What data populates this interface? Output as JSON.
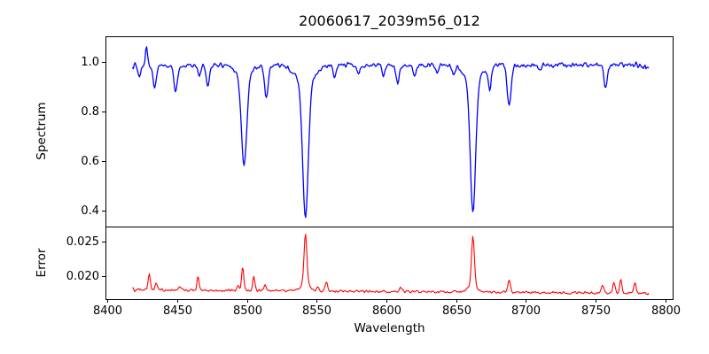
{
  "chart_data": {
    "type": "line",
    "title": "20060617_2039m56_012",
    "xlabel": "Wavelength",
    "xlim": [
      8398.7,
      8805.1
    ],
    "x_ticks": [
      {
        "value": 8400,
        "label": "8400"
      },
      {
        "value": 8450,
        "label": "8450"
      },
      {
        "value": 8500,
        "label": "8500"
      },
      {
        "value": 8550,
        "label": "8550"
      },
      {
        "value": 8600,
        "label": "8600"
      },
      {
        "value": 8650,
        "label": "8650"
      },
      {
        "value": 8700,
        "label": "8700"
      },
      {
        "value": 8750,
        "label": "8750"
      },
      {
        "value": 8800,
        "label": "8800"
      }
    ],
    "data_range": [
      8418,
      8788
    ],
    "sample_step": 0.64,
    "background": "#ffffff",
    "spine_color": "#000000",
    "text_color": "#000000",
    "grid": false,
    "legend": "none",
    "panels": [
      {
        "kind": "spectrum",
        "ylabel": "Spectrum",
        "ylim": [
          0.3357,
          1.1036
        ],
        "y_ticks": [
          {
            "value": 0.4,
            "label": "0.4"
          },
          {
            "value": 0.6,
            "label": "0.6"
          },
          {
            "value": 0.8,
            "label": "0.8"
          },
          {
            "value": 1.0,
            "label": "1.0"
          }
        ],
        "color": "#0000ff",
        "line_width": 1.3,
        "continuum": 0.988,
        "noise_amp": 0.0115,
        "noise_seed": 1337,
        "absorption_lines": [
          [
            8423,
            0.05,
            1.0
          ],
          [
            8434,
            0.095,
            1.1
          ],
          [
            8449,
            0.115,
            1.2
          ],
          [
            8466,
            0.05,
            1.0
          ],
          [
            8472,
            0.095,
            1.1
          ],
          [
            8498,
            0.355,
            1.9
          ],
          [
            8498,
            0.05,
            5.0
          ],
          [
            8514,
            0.13,
            1.3
          ],
          [
            8542,
            0.545,
            2.0
          ],
          [
            8542,
            0.07,
            7.0
          ],
          [
            8563,
            0.05,
            1.1
          ],
          [
            8580,
            0.04,
            1.1
          ],
          [
            8598,
            0.045,
            1.0
          ],
          [
            8608,
            0.075,
            1.2
          ],
          [
            8620,
            0.05,
            1.1
          ],
          [
            8636,
            0.03,
            1.0
          ],
          [
            8648,
            0.03,
            1.0
          ],
          [
            8662,
            0.53,
            1.9
          ],
          [
            8662,
            0.065,
            6.0
          ],
          [
            8674,
            0.095,
            1.1
          ],
          [
            8688,
            0.17,
            1.4
          ],
          [
            8710,
            0.03,
            1.0
          ],
          [
            8757,
            0.095,
            1.2
          ]
        ],
        "emission_spikes": [
          [
            8428,
            0.072,
            0.7
          ]
        ]
      },
      {
        "kind": "error",
        "ylabel": "Error",
        "ylim": [
          0.01671,
          0.02709
        ],
        "y_ticks": [
          {
            "value": 0.02,
            "label": "0.020"
          },
          {
            "value": 0.025,
            "label": "0.025"
          }
        ],
        "color": "#ff0000",
        "line_width": 1.1,
        "baseline": 0.0178,
        "baseline_slope": -1.35e-06,
        "baseline_ref": 8600,
        "noise_amp": 0.00022,
        "noise_seed": 7331,
        "peaks": [
          [
            8430,
            0.0024,
            0.7
          ],
          [
            8435,
            0.0011,
            0.7
          ],
          [
            8452,
            0.0007,
            0.8
          ],
          [
            8465,
            0.0019,
            0.7
          ],
          [
            8494,
            0.0008,
            0.7
          ],
          [
            8497,
            0.0033,
            0.8
          ],
          [
            8505,
            0.002,
            0.8
          ],
          [
            8513,
            0.001,
            0.7
          ],
          [
            8542,
            0.0072,
            1.0
          ],
          [
            8542,
            0.0011,
            3.0
          ],
          [
            8551,
            0.0007,
            0.8
          ],
          [
            8557,
            0.0013,
            0.9
          ],
          [
            8610,
            0.0005,
            1.2
          ],
          [
            8662,
            0.0069,
            1.0
          ],
          [
            8662,
            0.001,
            3.0
          ],
          [
            8688,
            0.0017,
            0.9
          ],
          [
            8755,
            0.0012,
            0.9
          ],
          [
            8763,
            0.0015,
            0.8
          ],
          [
            8768,
            0.002,
            0.8
          ],
          [
            8778,
            0.0015,
            0.9
          ]
        ]
      }
    ]
  }
}
